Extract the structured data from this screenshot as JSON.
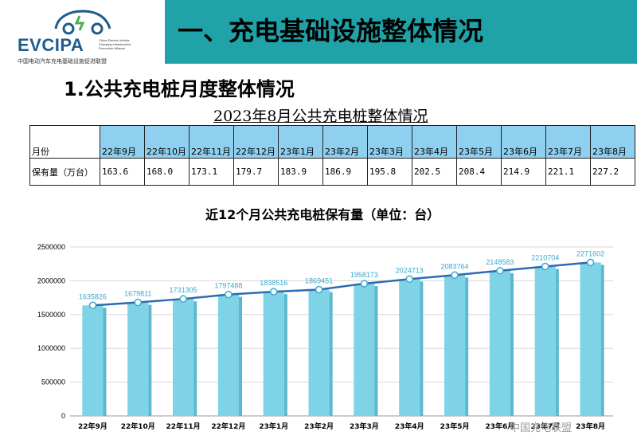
{
  "logo": {
    "name": "EVCIPA",
    "subtitle_en": "China Electric Vehicle\nCharging Infrastructure\nPromotion Alliance",
    "subtitle_cn": "中国电动汽车充电基础设施促进联盟"
  },
  "banner": {
    "title": "一、充电基础设施整体情况"
  },
  "section": {
    "title": "1.公共充电桩月度整体情况"
  },
  "table": {
    "title": "2023年8月公共充电桩整体情况",
    "row_month_label": "月份",
    "row_value_label": "保有量（万台）",
    "months": [
      "22年9月",
      "22年10月",
      "22年11月",
      "22年12月",
      "23年1月",
      "23年2月",
      "23年3月",
      "23年4月",
      "23年5月",
      "23年6月",
      "23年7月",
      "23年8月"
    ],
    "values": [
      "163.6",
      "168.0",
      "173.1",
      "179.7",
      "183.9",
      "186.9",
      "195.8",
      "202.5",
      "208.4",
      "214.9",
      "221.1",
      "227.2"
    ]
  },
  "chart_data": {
    "type": "bar",
    "title": "近12个月公共充电桩保有量（单位：台）",
    "categories": [
      "22年9月",
      "22年10月",
      "22年11月",
      "22年12月",
      "23年1月",
      "23年2月",
      "23年3月",
      "23年4月",
      "23年5月",
      "23年6月",
      "23年7月",
      "23年8月"
    ],
    "values": [
      1635826,
      1679811,
      1731305,
      1797488,
      1838516,
      1869451,
      1958173,
      2024713,
      2083764,
      2148583,
      2210704,
      2271602
    ],
    "ylim": [
      0,
      2500000
    ],
    "yticks": [
      "0",
      "500000",
      "1000000",
      "1500000",
      "2000000",
      "2500000"
    ],
    "bar_color": "#7fd3e6",
    "line_color": "#2b6cb0",
    "label_color": "#3aa8d0",
    "grid": true
  },
  "watermark": {
    "text": "中国充电联盟"
  }
}
